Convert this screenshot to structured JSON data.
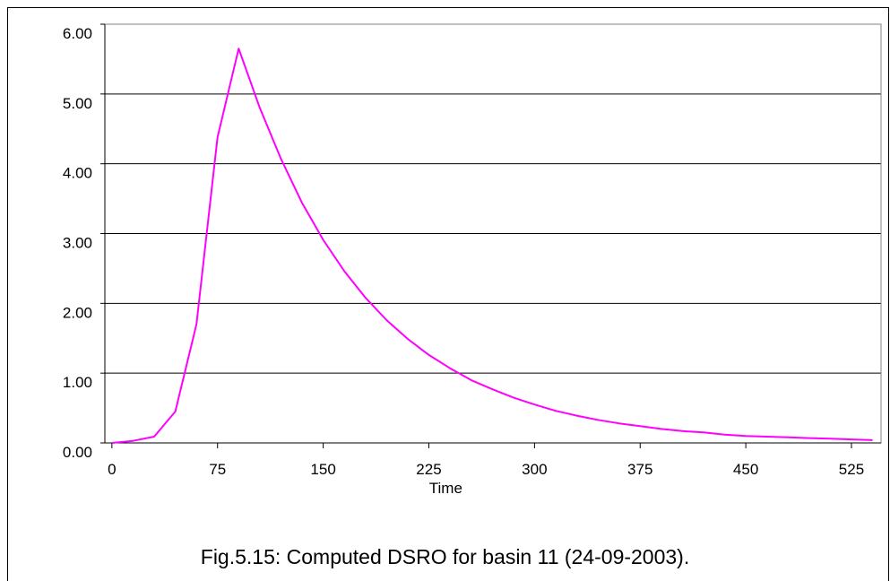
{
  "chart_data": {
    "type": "line",
    "title": "",
    "xlabel": "Time",
    "ylabel": "",
    "xlim": [
      -5,
      546
    ],
    "ylim": [
      0,
      6
    ],
    "grid": true,
    "x_ticks": [
      0,
      75,
      150,
      225,
      300,
      375,
      450,
      525
    ],
    "y_ticks": [
      0,
      1,
      2,
      3,
      4,
      5,
      6
    ],
    "y_tick_format": "2dp",
    "series": [
      {
        "color": "#ff00ff",
        "x": [
          0,
          15,
          30,
          45,
          60,
          75,
          90,
          105,
          120,
          135,
          150,
          165,
          180,
          195,
          210,
          225,
          240,
          255,
          270,
          285,
          300,
          315,
          330,
          345,
          360,
          375,
          390,
          405,
          420,
          435,
          450,
          465,
          480,
          495,
          510,
          525,
          540
        ],
        "values": [
          0.0,
          0.03,
          0.09,
          0.45,
          1.7,
          4.38,
          5.65,
          4.8,
          4.07,
          3.44,
          2.91,
          2.46,
          2.08,
          1.76,
          1.49,
          1.26,
          1.07,
          0.9,
          0.77,
          0.65,
          0.55,
          0.46,
          0.39,
          0.33,
          0.28,
          0.24,
          0.2,
          0.17,
          0.15,
          0.12,
          0.1,
          0.09,
          0.08,
          0.07,
          0.06,
          0.05,
          0.04
        ]
      }
    ]
  },
  "caption": "Fig.5.15: Computed DSRO for basin 11 (24-09-2003)."
}
